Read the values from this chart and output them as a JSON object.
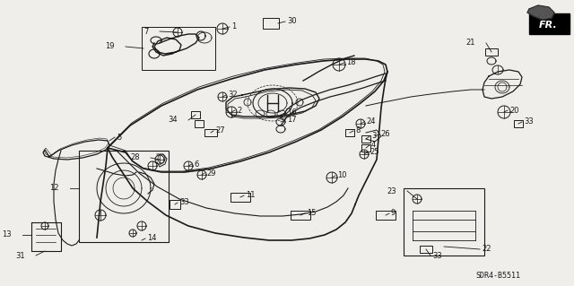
{
  "bg_color": "#f0eeeb",
  "line_color": "#1a1a1a",
  "diagram_code": "SDR4-B5511",
  "fig_width": 6.4,
  "fig_height": 3.19,
  "dpi": 100
}
